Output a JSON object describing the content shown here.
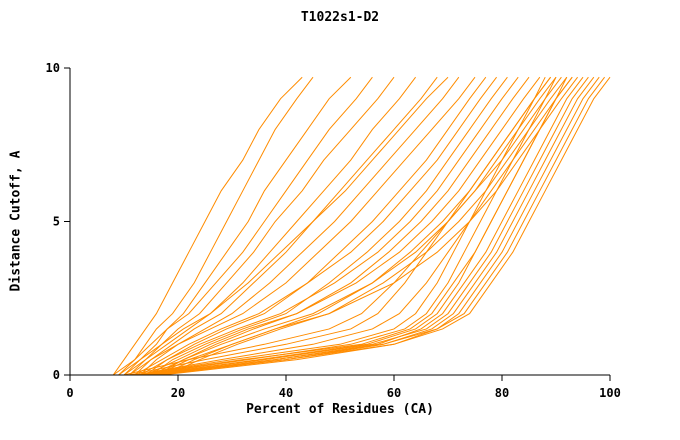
{
  "chart_data": {
    "type": "line",
    "title": "T1022s1-D2",
    "xlabel": "Percent of Residues (CA)",
    "ylabel": "Distance Cutoff, A",
    "xlim": [
      0,
      100
    ],
    "ylim": [
      0,
      10
    ],
    "x_ticks": [
      0,
      20,
      40,
      60,
      80,
      100
    ],
    "y_ticks": [
      0,
      5,
      10
    ],
    "grid": false,
    "legend": "none",
    "line_color": "#ff8c00",
    "axis_color": "#000000",
    "y_levels": [
      0,
      0.5,
      1,
      1.5,
      2,
      3,
      4,
      5,
      6,
      7,
      8,
      9,
      9.7
    ],
    "series": [
      [
        8,
        10,
        12,
        14,
        16,
        19,
        22,
        25,
        28,
        32,
        35,
        39,
        43
      ],
      [
        9,
        12,
        14,
        16,
        19,
        23,
        26,
        29,
        32,
        35,
        38,
        42,
        45
      ],
      [
        10,
        13,
        16,
        18,
        21,
        25,
        29,
        33,
        36,
        40,
        44,
        48,
        52
      ],
      [
        8,
        12,
        15,
        18,
        22,
        27,
        32,
        36,
        40,
        44,
        48,
        53,
        56
      ],
      [
        11,
        14,
        17,
        20,
        24,
        29,
        34,
        38,
        43,
        47,
        52,
        57,
        60
      ],
      [
        10,
        14,
        18,
        22,
        26,
        32,
        37,
        42,
        47,
        52,
        56,
        61,
        64
      ],
      [
        12,
        15,
        19,
        23,
        28,
        34,
        40,
        45,
        50,
        55,
        60,
        65,
        68
      ],
      [
        9,
        13,
        17,
        21,
        26,
        33,
        39,
        45,
        51,
        56,
        61,
        66,
        70
      ],
      [
        13,
        16,
        20,
        25,
        30,
        37,
        43,
        49,
        54,
        59,
        64,
        69,
        72
      ],
      [
        11,
        15,
        20,
        26,
        32,
        40,
        46,
        52,
        57,
        62,
        67,
        72,
        75
      ],
      [
        14,
        18,
        23,
        29,
        36,
        44,
        50,
        56,
        61,
        66,
        70,
        74,
        77
      ],
      [
        12,
        17,
        22,
        28,
        35,
        44,
        52,
        58,
        63,
        68,
        72,
        76,
        79
      ],
      [
        15,
        19,
        25,
        32,
        40,
        48,
        55,
        61,
        66,
        70,
        74,
        78,
        81
      ],
      [
        13,
        18,
        24,
        31,
        39,
        49,
        57,
        63,
        68,
        72,
        76,
        80,
        83
      ],
      [
        16,
        21,
        27,
        34,
        42,
        52,
        59,
        65,
        70,
        74,
        78,
        82,
        85
      ],
      [
        14,
        20,
        26,
        33,
        42,
        53,
        61,
        67,
        72,
        76,
        80,
        84,
        87
      ],
      [
        17,
        23,
        30,
        38,
        46,
        56,
        63,
        69,
        74,
        78,
        82,
        86,
        89
      ],
      [
        15,
        21,
        28,
        36,
        45,
        56,
        64,
        70,
        75,
        79,
        83,
        87,
        90
      ],
      [
        18,
        24,
        31,
        39,
        48,
        58,
        66,
        72,
        77,
        81,
        85,
        89,
        92
      ],
      [
        16,
        22,
        30,
        38,
        48,
        60,
        68,
        74,
        79,
        83,
        87,
        91,
        94
      ],
      [
        12,
        30,
        50,
        60,
        64,
        68,
        71,
        74,
        77,
        80,
        83,
        86,
        88
      ],
      [
        13,
        33,
        52,
        62,
        66,
        70,
        73,
        76,
        79,
        82,
        85,
        88,
        90
      ],
      [
        14,
        35,
        55,
        64,
        68,
        72,
        75,
        78,
        81,
        84,
        87,
        90,
        92
      ],
      [
        12,
        32,
        54,
        63,
        67,
        71,
        75,
        78,
        81,
        84,
        87,
        90,
        93
      ],
      [
        15,
        38,
        57,
        65,
        69,
        73,
        77,
        80,
        83,
        86,
        89,
        92,
        95
      ],
      [
        13,
        36,
        56,
        66,
        70,
        74,
        78,
        81,
        84,
        87,
        90,
        93,
        96
      ],
      [
        16,
        40,
        58,
        67,
        71,
        75,
        79,
        82,
        85,
        88,
        91,
        94,
        97
      ],
      [
        14,
        38,
        58,
        68,
        72,
        76,
        80,
        83,
        86,
        89,
        92,
        95,
        98
      ],
      [
        17,
        42,
        60,
        68,
        73,
        77,
        81,
        84,
        87,
        90,
        93,
        96,
        99
      ],
      [
        15,
        40,
        60,
        69,
        74,
        78,
        82,
        85,
        88,
        91,
        94,
        97,
        100
      ],
      [
        11,
        25,
        40,
        52,
        57,
        62,
        66,
        70,
        74,
        78,
        82,
        86,
        89
      ],
      [
        12,
        28,
        45,
        56,
        61,
        66,
        70,
        74,
        78,
        82,
        86,
        90,
        93
      ],
      [
        10,
        22,
        36,
        48,
        54,
        60,
        65,
        70,
        75,
        80,
        84,
        88,
        91
      ]
    ]
  }
}
